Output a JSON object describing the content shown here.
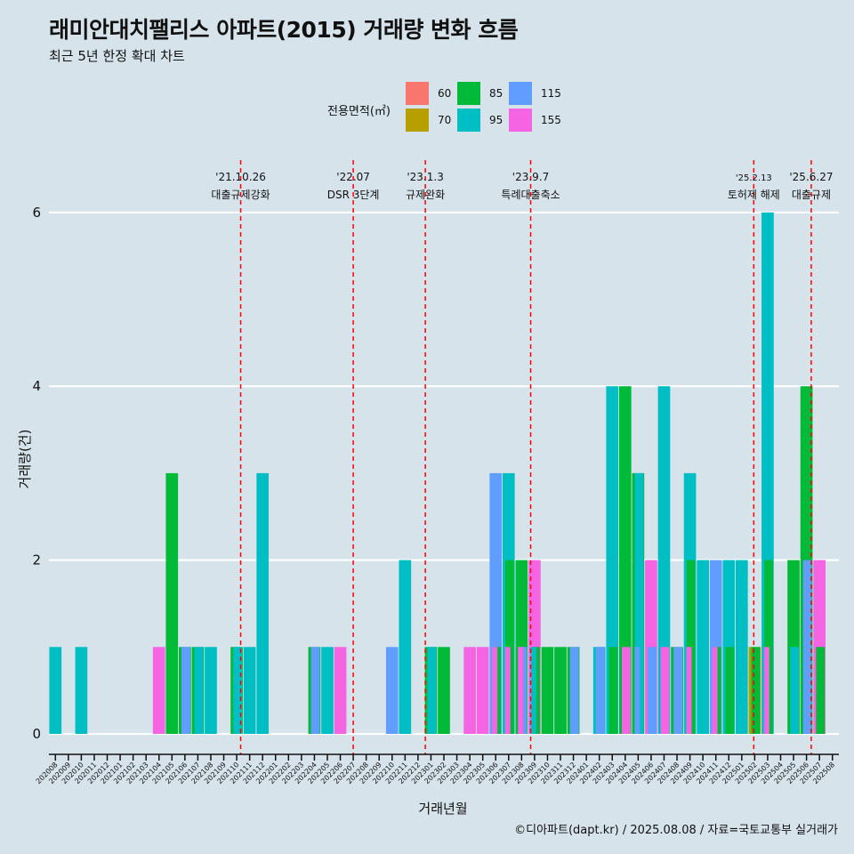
{
  "title": "래미안대치팰리스 아파트(2015) 거래량 변화 흐름",
  "subtitle": "최근 5년 한정 확대 차트",
  "caption": "©디아파트(dapt.kr) / 2025.08.08 / 자료=국토교통부 실거래가",
  "legend": {
    "title": "전용면적(㎡)",
    "items": [
      {
        "label": "60",
        "color": "#f8766d"
      },
      {
        "label": "70",
        "color": "#b79f00"
      },
      {
        "label": "85",
        "color": "#00ba38"
      },
      {
        "label": "95",
        "color": "#00bfc4"
      },
      {
        "label": "115",
        "color": "#619cff"
      },
      {
        "label": "155",
        "color": "#f564e3"
      }
    ]
  },
  "chart_data": {
    "type": "bar",
    "xlabel": "거래년월",
    "ylabel": "거래량(건)",
    "ylim": [
      0,
      6.4
    ],
    "yticks": [
      0,
      2,
      4,
      6
    ],
    "grid": "horizontal",
    "categories": [
      "202008",
      "202009",
      "202010",
      "202011",
      "202012",
      "202101",
      "202102",
      "202103",
      "202104",
      "202105",
      "202106",
      "202107",
      "202108",
      "202109",
      "202110",
      "202111",
      "202112",
      "202201",
      "202202",
      "202203",
      "202204",
      "202205",
      "202206",
      "202207",
      "202208",
      "202209",
      "202210",
      "202211",
      "202212",
      "202301",
      "202302",
      "202303",
      "202304",
      "202305",
      "202306",
      "202307",
      "202308",
      "202309",
      "202310",
      "202311",
      "202312",
      "202401",
      "202402",
      "202403",
      "202404",
      "202405",
      "202406",
      "202407",
      "202408",
      "202409",
      "202410",
      "202411",
      "202412",
      "202501",
      "202502",
      "202503",
      "202504",
      "202505",
      "202506",
      "202507",
      "202508"
    ],
    "bars": [
      {
        "month": "202008",
        "segments": [
          {
            "area": "95",
            "count": 1
          }
        ]
      },
      {
        "month": "202010",
        "segments": [
          {
            "area": "95",
            "count": 1
          }
        ]
      },
      {
        "month": "202104",
        "segments": [
          {
            "area": "155",
            "count": 1
          }
        ]
      },
      {
        "month": "202105",
        "segments": [
          {
            "area": "85",
            "count": 3
          }
        ]
      },
      {
        "month": "202106",
        "segments": [
          {
            "area": "85",
            "count": 1
          },
          {
            "area": "115",
            "count": 1
          }
        ]
      },
      {
        "month": "202107",
        "segments": [
          {
            "area": "85",
            "count": 1
          },
          {
            "area": "95",
            "count": 1
          }
        ]
      },
      {
        "month": "202108",
        "segments": [
          {
            "area": "95",
            "count": 1
          }
        ]
      },
      {
        "month": "202110",
        "segments": [
          {
            "area": "85",
            "count": 1
          },
          {
            "area": "95",
            "count": 1
          }
        ]
      },
      {
        "month": "202111",
        "segments": [
          {
            "area": "95",
            "count": 1
          }
        ]
      },
      {
        "month": "202112",
        "segments": [
          {
            "area": "95",
            "count": 3
          }
        ]
      },
      {
        "month": "202204",
        "segments": [
          {
            "area": "85",
            "count": 1
          },
          {
            "area": "115",
            "count": 1
          }
        ]
      },
      {
        "month": "202205",
        "segments": [
          {
            "area": "95",
            "count": 1
          }
        ]
      },
      {
        "month": "202206",
        "segments": [
          {
            "area": "155",
            "count": 1
          }
        ]
      },
      {
        "month": "202210",
        "segments": [
          {
            "area": "115",
            "count": 1
          }
        ]
      },
      {
        "month": "202211",
        "segments": [
          {
            "area": "95",
            "count": 2
          }
        ]
      },
      {
        "month": "202301",
        "segments": [
          {
            "area": "85",
            "count": 1
          },
          {
            "area": "95",
            "count": 1
          }
        ]
      },
      {
        "month": "202302",
        "segments": [
          {
            "area": "85",
            "count": 1
          }
        ]
      },
      {
        "month": "202304",
        "segments": [
          {
            "area": "155",
            "count": 1
          }
        ]
      },
      {
        "month": "202305",
        "segments": [
          {
            "area": "155",
            "count": 1
          }
        ]
      },
      {
        "month": "202306",
        "segments": [
          {
            "area": "85",
            "count": 1
          },
          {
            "area": "115",
            "count": 3
          },
          {
            "area": "155",
            "count": 1
          }
        ]
      },
      {
        "month": "202307",
        "segments": [
          {
            "area": "85",
            "count": 2
          },
          {
            "area": "95",
            "count": 3
          },
          {
            "area": "155",
            "count": 1
          }
        ]
      },
      {
        "month": "202308",
        "segments": [
          {
            "area": "85",
            "count": 2
          },
          {
            "area": "115",
            "count": 1
          },
          {
            "area": "155",
            "count": 1
          }
        ]
      },
      {
        "month": "202309",
        "segments": [
          {
            "area": "85",
            "count": 1
          },
          {
            "area": "95",
            "count": 1
          },
          {
            "area": "155",
            "count": 2
          }
        ]
      },
      {
        "month": "202310",
        "segments": [
          {
            "area": "85",
            "count": 1
          }
        ]
      },
      {
        "month": "202311",
        "segments": [
          {
            "area": "85",
            "count": 1
          }
        ]
      },
      {
        "month": "202312",
        "segments": [
          {
            "area": "85",
            "count": 1
          },
          {
            "area": "115",
            "count": 1
          }
        ]
      },
      {
        "month": "202402",
        "segments": [
          {
            "area": "95",
            "count": 1
          },
          {
            "area": "115",
            "count": 1
          }
        ]
      },
      {
        "month": "202403",
        "segments": [
          {
            "area": "85",
            "count": 1
          },
          {
            "area": "95",
            "count": 4
          }
        ]
      },
      {
        "month": "202404",
        "segments": [
          {
            "area": "85",
            "count": 4
          },
          {
            "area": "155",
            "count": 1
          }
        ]
      },
      {
        "month": "202405",
        "segments": [
          {
            "area": "85",
            "count": 3
          },
          {
            "area": "95",
            "count": 3
          },
          {
            "area": "115",
            "count": 1
          }
        ]
      },
      {
        "month": "202406",
        "segments": [
          {
            "area": "115",
            "count": 1
          },
          {
            "area": "155",
            "count": 2
          }
        ]
      },
      {
        "month": "202407",
        "segments": [
          {
            "area": "95",
            "count": 4
          },
          {
            "area": "155",
            "count": 1
          }
        ]
      },
      {
        "month": "202408",
        "segments": [
          {
            "area": "85",
            "count": 1
          },
          {
            "area": "115",
            "count": 1
          }
        ]
      },
      {
        "month": "202409",
        "segments": [
          {
            "area": "85",
            "count": 2
          },
          {
            "area": "95",
            "count": 3
          },
          {
            "area": "155",
            "count": 1
          }
        ]
      },
      {
        "month": "202410",
        "segments": [
          {
            "area": "95",
            "count": 2
          }
        ]
      },
      {
        "month": "202411",
        "segments": [
          {
            "area": "85",
            "count": 1
          },
          {
            "area": "115",
            "count": 2
          },
          {
            "area": "155",
            "count": 1
          }
        ]
      },
      {
        "month": "202412",
        "segments": [
          {
            "area": "85",
            "count": 1
          },
          {
            "area": "95",
            "count": 2
          }
        ]
      },
      {
        "month": "202501",
        "segments": [
          {
            "area": "95",
            "count": 2
          }
        ]
      },
      {
        "month": "202502",
        "segments": [
          {
            "area": "70",
            "count": 1
          },
          {
            "area": "85",
            "count": 1
          }
        ]
      },
      {
        "month": "202503",
        "segments": [
          {
            "area": "85",
            "count": 2
          },
          {
            "area": "95",
            "count": 6
          },
          {
            "area": "155",
            "count": 1
          }
        ]
      },
      {
        "month": "202505",
        "segments": [
          {
            "area": "85",
            "count": 2
          },
          {
            "area": "95",
            "count": 1
          }
        ]
      },
      {
        "month": "202506",
        "segments": [
          {
            "area": "85",
            "count": 4
          },
          {
            "area": "115",
            "count": 2
          }
        ]
      },
      {
        "month": "202507",
        "segments": [
          {
            "area": "85",
            "count": 1
          },
          {
            "area": "155",
            "count": 2
          }
        ]
      }
    ],
    "annotations": [
      {
        "date": "2021-10-26",
        "line1": "'21.10.26",
        "line2": "대출규제강화"
      },
      {
        "date": "2022-07",
        "line1": "'22.07",
        "line2": "DSR 3단계"
      },
      {
        "date": "2023-01-03",
        "line1": "'23.1.3",
        "line2": "규제완화"
      },
      {
        "date": "2023-09-07",
        "line1": "'23.9.7",
        "line2": "특례대출축소"
      },
      {
        "date": "2025-02-13",
        "line1": "'25.2.13",
        "line2": "토허제 해제",
        "small": true
      },
      {
        "date": "2025-06-27",
        "line1": "'25.6.27",
        "line2": "대출규제"
      }
    ]
  }
}
